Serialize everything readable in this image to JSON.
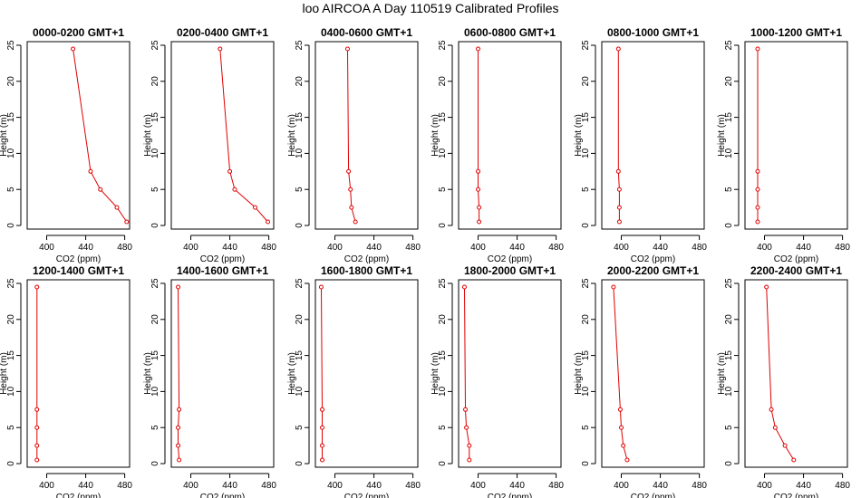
{
  "title": "loo AIRCOA A  Day 110519  Calibrated Profiles",
  "chart_data": {
    "type": "line",
    "xlabel": "CO2 (ppm)",
    "ylabel": "Height (m)",
    "xlim": [
      380,
      485
    ],
    "ylim": [
      -0.5,
      25.5
    ],
    "xticks": [
      400,
      440,
      480
    ],
    "yticks": [
      0,
      5,
      10,
      15,
      20,
      25
    ],
    "heights": [
      0.5,
      2.5,
      5,
      7.5,
      24.5
    ],
    "color": "#e00000",
    "panels": [
      {
        "title": "0000-0200 GMT+1",
        "co2": [
          482,
          472,
          455,
          445,
          427
        ]
      },
      {
        "title": "0200-0400 GMT+1",
        "co2": [
          479,
          466,
          445,
          440,
          430
        ]
      },
      {
        "title": "0400-0600 GMT+1",
        "co2": [
          421,
          417,
          416,
          414,
          413
        ]
      },
      {
        "title": "0600-0800 GMT+1",
        "co2": [
          401,
          401,
          400,
          400,
          400
        ]
      },
      {
        "title": "0800-1000 GMT+1",
        "co2": [
          398,
          398,
          398,
          397,
          397
        ]
      },
      {
        "title": "1000-1200 GMT+1",
        "co2": [
          393,
          393,
          393,
          393,
          393
        ]
      },
      {
        "title": "1200-1400 GMT+1",
        "co2": [
          390,
          390,
          390,
          390,
          390
        ]
      },
      {
        "title": "1400-1600 GMT+1",
        "co2": [
          388,
          387,
          387,
          388,
          387
        ]
      },
      {
        "title": "1600-1800 GMT+1",
        "co2": [
          387,
          387,
          387,
          387,
          386
        ]
      },
      {
        "title": "1800-2000 GMT+1",
        "co2": [
          391,
          391,
          388,
          387,
          386
        ]
      },
      {
        "title": "2000-2200 GMT+1",
        "co2": [
          406,
          402,
          400,
          399,
          392
        ]
      },
      {
        "title": "2200-2400 GMT+1",
        "co2": [
          430,
          421,
          411,
          407,
          402
        ]
      }
    ]
  }
}
